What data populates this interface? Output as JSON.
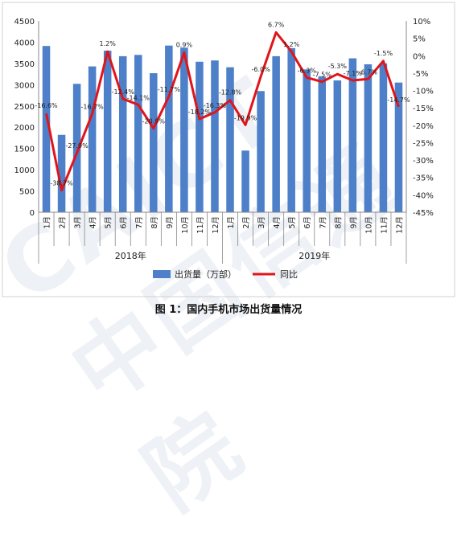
{
  "chart_data": {
    "type": "bar",
    "categories": [
      "1月",
      "2月",
      "3月",
      "4月",
      "5月",
      "6月",
      "7月",
      "8月",
      "9月",
      "10月",
      "11月",
      "12月",
      "1月",
      "2月",
      "3月",
      "4月",
      "5月",
      "6月",
      "7月",
      "8月",
      "9月",
      "10月",
      "11月",
      "12月"
    ],
    "years": [
      "2018年",
      "2019年"
    ],
    "series": [
      {
        "name": "出货量（万部）",
        "kind": "bar",
        "axis": "left",
        "color": "#4d80c9",
        "values": [
          3910,
          1820,
          3020,
          3430,
          3800,
          3670,
          3700,
          3270,
          3920,
          3870,
          3540,
          3570,
          3410,
          1450,
          2850,
          3670,
          3860,
          3360,
          3190,
          3100,
          3620,
          3480,
          3500,
          3050
        ]
      },
      {
        "name": "同比",
        "kind": "line",
        "axis": "right",
        "color": "#e0151b",
        "values": [
          -16.6,
          -38.7,
          -27.9,
          -16.7,
          1.2,
          -12.4,
          -14.1,
          -20.9,
          -11.7,
          0.9,
          -18.2,
          -16.3,
          -12.8,
          -19.9,
          -6.0,
          6.7,
          1.2,
          -6.3,
          -7.5,
          -5.3,
          -7.1,
          -6.7,
          -1.5,
          -14.7
        ],
        "labels": [
          "-16.6%",
          "-38.7%",
          "-27.9%",
          "-16.7%",
          "1.2%",
          "-12.4%",
          "-14.1%",
          "-20.9%",
          "-11.7%",
          "0.9%",
          "-18.2%",
          "-16.3%",
          "-12.8%",
          "-19.9%",
          "-6.0%",
          "6.7%",
          "1.2%",
          "-6.3%",
          "-7.5%",
          "-5.3%",
          "-7.1%",
          "-6.7%",
          "-1.5%",
          "-14.7%"
        ]
      }
    ],
    "ylim_left": [
      0,
      4500
    ],
    "yticks_left": [
      "0",
      "500",
      "1000",
      "1500",
      "2000",
      "2500",
      "3000",
      "3500",
      "4000",
      "4500"
    ],
    "ylim_right": [
      -45,
      10
    ],
    "yticks_right": [
      "10%",
      "5%",
      "0%",
      "-5%",
      "-10%",
      "-15%",
      "-20%",
      "-25%",
      "-30%",
      "-35%",
      "-40%",
      "-45%"
    ],
    "legend_position": "bottom",
    "grid": false
  },
  "caption": "图 1：国内手机市场出货量情况",
  "watermark": "CAICT 中国信通院"
}
